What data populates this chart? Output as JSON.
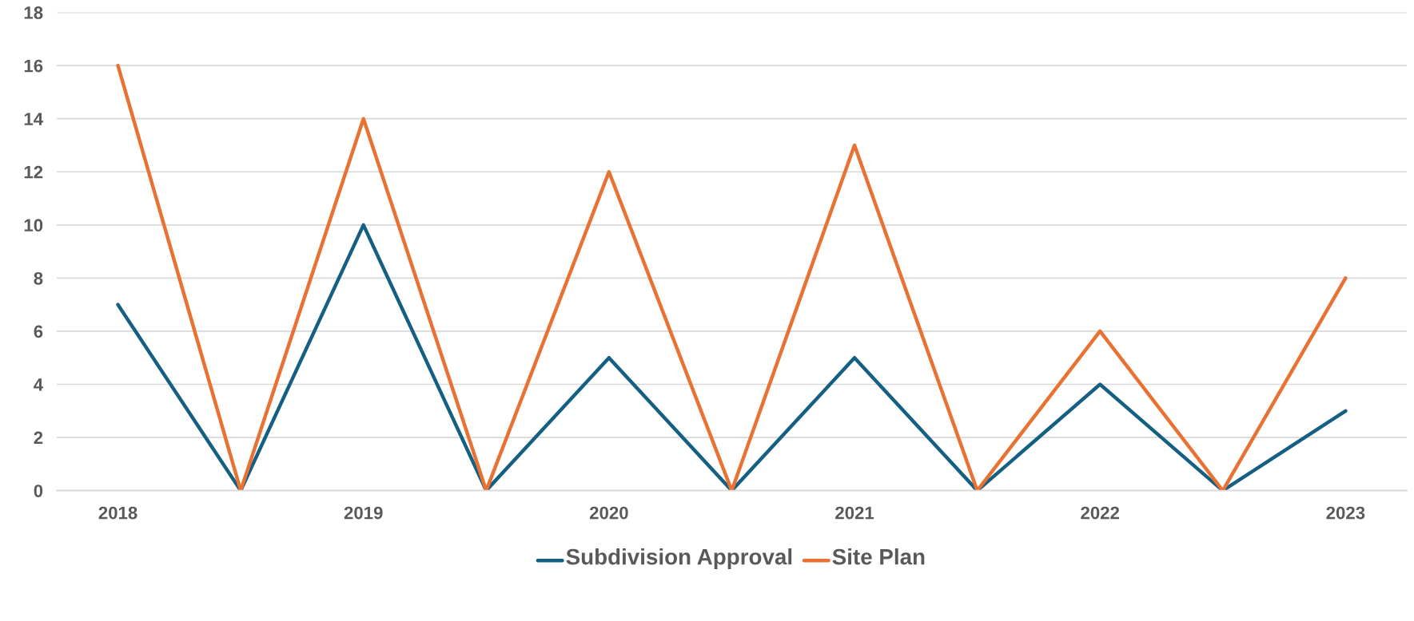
{
  "chart_data": {
    "type": "line",
    "categories": [
      "2018",
      null,
      "2019",
      null,
      "2020",
      null,
      "2021",
      null,
      "2022",
      null,
      "2023"
    ],
    "series": [
      {
        "name": "Subdivision Approval",
        "color": "#156082",
        "values": [
          7,
          0,
          10,
          0,
          5,
          0,
          5,
          0,
          4,
          0,
          3
        ]
      },
      {
        "name": "Site Plan",
        "color": "#e97132",
        "values": [
          16,
          0,
          14,
          0,
          12,
          0,
          13,
          0,
          6,
          0,
          8
        ]
      }
    ],
    "ylim": [
      0,
      18
    ],
    "yticks": [
      0,
      2,
      4,
      6,
      8,
      10,
      12,
      14,
      16,
      18
    ],
    "grid": "y",
    "legend": "bottom",
    "marker": "none",
    "line_style": "solid"
  }
}
